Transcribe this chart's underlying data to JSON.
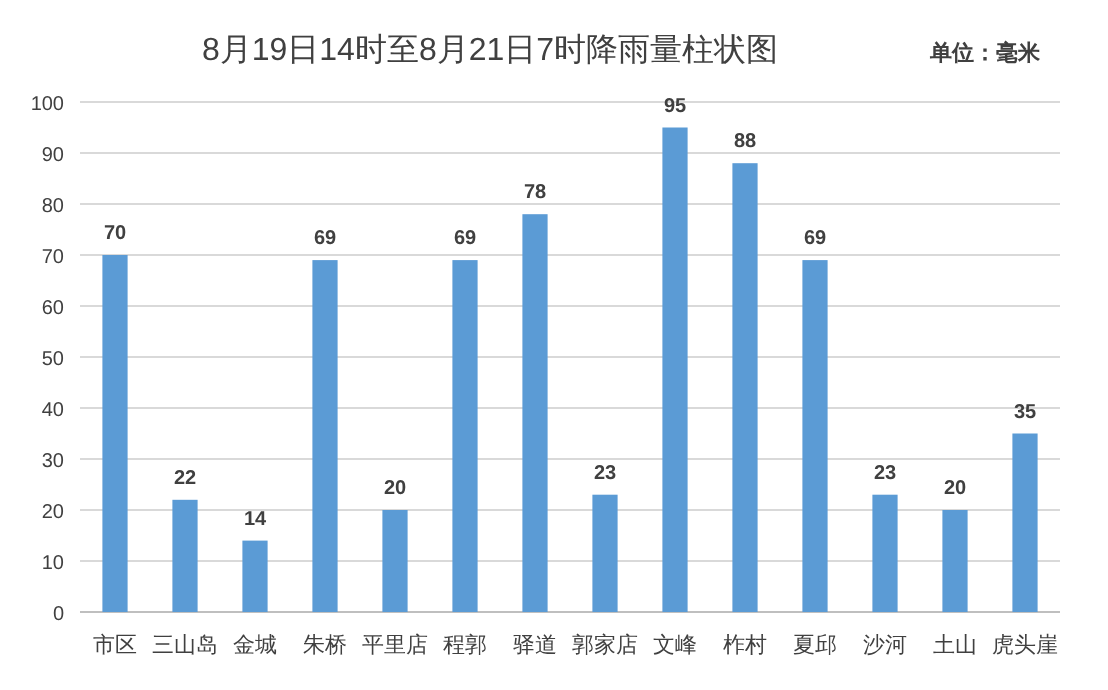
{
  "chart_data": {
    "type": "bar",
    "title": "8月19日14时至8月21日7时降雨量柱状图",
    "annotations": [
      "单位：毫米"
    ],
    "categories": [
      "市区",
      "三山岛",
      "金城",
      "朱桥",
      "平里店",
      "程郭",
      "驿道",
      "郭家店",
      "文峰",
      "柞村",
      "夏邱",
      "沙河",
      "土山",
      "虎头崖"
    ],
    "values": [
      70,
      22,
      14,
      69,
      20,
      69,
      78,
      23,
      95,
      88,
      69,
      23,
      20,
      35
    ],
    "color": "#5b9bd5",
    "data_labels": true,
    "ylim": [
      0,
      100
    ],
    "yticks": [
      0,
      10,
      20,
      30,
      40,
      50,
      60,
      70,
      80,
      90,
      100
    ],
    "grid": "y"
  }
}
